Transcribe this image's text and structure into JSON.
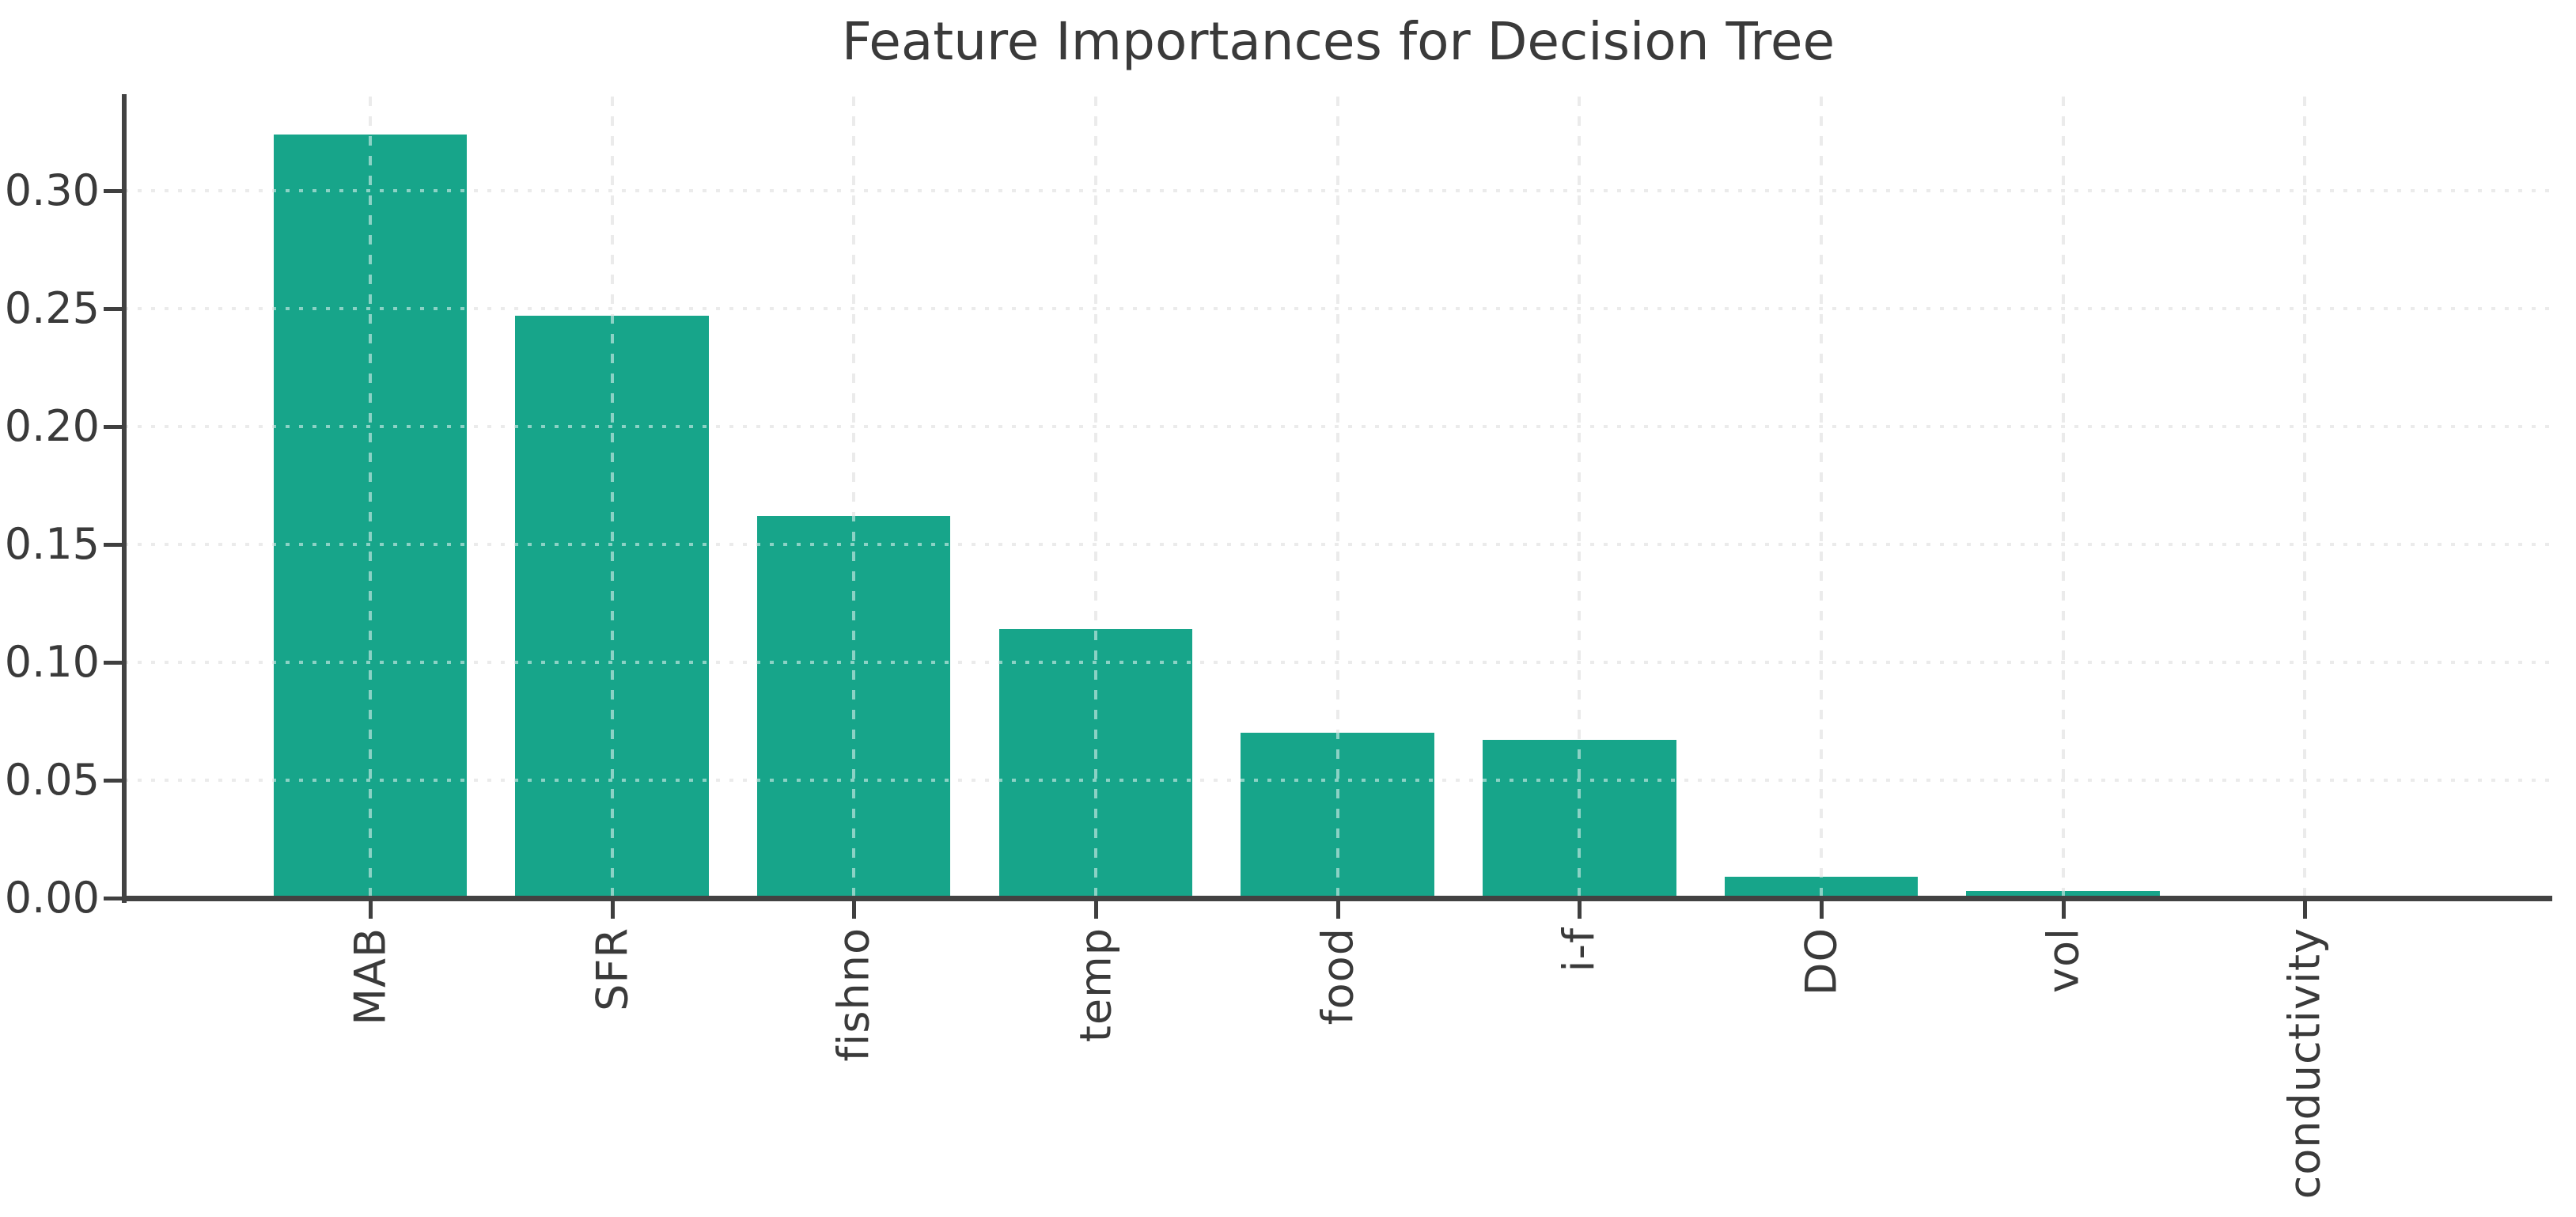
{
  "chart_data": {
    "type": "bar",
    "title": "Feature Importances for Decision Tree",
    "categories": [
      "MAB",
      "SFR",
      "fishno",
      "temp",
      "food",
      "i-f",
      "DO",
      "vol",
      "conductivity"
    ],
    "values": [
      0.324,
      0.247,
      0.162,
      0.114,
      0.07,
      0.067,
      0.009,
      0.003,
      0.0
    ],
    "xlabel": "",
    "ylabel": "",
    "ylim": [
      0,
      0.34
    ],
    "ytick_labels": [
      "0.00",
      "0.05",
      "0.10",
      "0.15",
      "0.20",
      "0.25",
      "0.30"
    ],
    "yticks": [
      0.0,
      0.05,
      0.1,
      0.15,
      0.2,
      0.25,
      0.3
    ],
    "x_tick_rotation": 90,
    "grid": "dotted, drawn over bars",
    "legend_position": "none",
    "bar_color": "#17a58a",
    "grid_color": "#d7d7d7",
    "spine_color": "#424242",
    "text_color": "#3a3a3a",
    "background_color": "#ffffff"
  }
}
